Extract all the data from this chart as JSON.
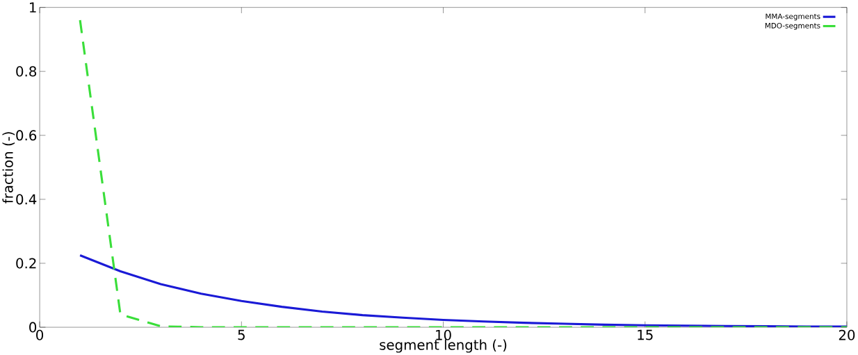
{
  "chart_data": {
    "type": "line",
    "xlabel": "segment length (-)",
    "ylabel": "fraction (-)",
    "x": [
      1,
      2,
      3,
      4,
      5,
      6,
      7,
      8,
      9,
      10,
      11,
      12,
      13,
      14,
      15,
      16,
      17,
      18,
      19,
      20
    ],
    "series": [
      {
        "name": "MMA-segments",
        "color": "#1a1ad6",
        "line_style": "solid",
        "values": [
          0.225,
          0.175,
          0.135,
          0.105,
          0.082,
          0.064,
          0.049,
          0.038,
          0.03,
          0.023,
          0.018,
          0.014,
          0.011,
          0.008,
          0.006,
          0.005,
          0.004,
          0.003,
          0.002,
          0.002
        ]
      },
      {
        "name": "MDO-segments",
        "color": "#3ade3a",
        "line_style": "dashed",
        "values": [
          0.96,
          0.04,
          0.003,
          0,
          0,
          0,
          0,
          0,
          0,
          0,
          0,
          0,
          0,
          0,
          0,
          0,
          0,
          0,
          0,
          0
        ]
      }
    ],
    "xlim": [
      0,
      20
    ],
    "ylim": [
      0,
      1
    ],
    "xticks": [
      0,
      5,
      10,
      15,
      20
    ],
    "yticks": [
      0,
      0.2,
      0.4,
      0.6,
      0.8,
      1
    ],
    "grid": false,
    "legend": "top right",
    "marker": "none"
  }
}
